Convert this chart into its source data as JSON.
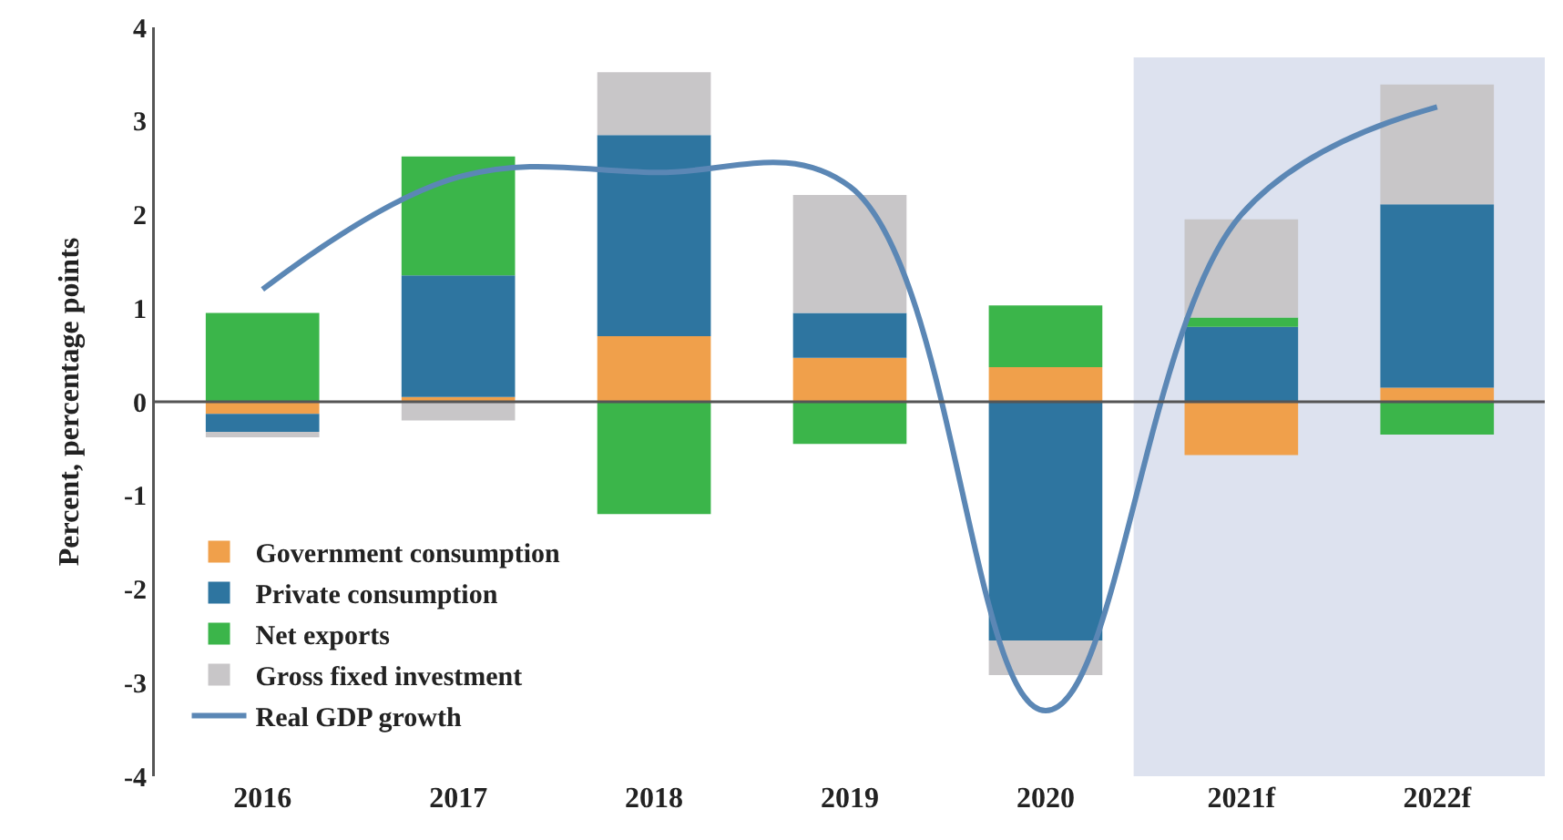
{
  "chart_data": {
    "type": "bar",
    "stacked": true,
    "ylabel": "Percent, percentage points",
    "categories": [
      "2016",
      "2017",
      "2018",
      "2019",
      "2020",
      "2021f",
      "2022f"
    ],
    "series": [
      {
        "name": "Government consumption",
        "color": "#f0a04b",
        "values": [
          -0.13,
          0.05,
          0.7,
          0.47,
          0.37,
          -0.57,
          0.15
        ]
      },
      {
        "name": "Private consumption",
        "color": "#2e75a0",
        "values": [
          -0.19,
          1.3,
          2.15,
          0.48,
          -2.55,
          0.8,
          1.96
        ]
      },
      {
        "name": "Net exports",
        "color": "#3bb54a",
        "values": [
          0.95,
          1.27,
          -1.2,
          -0.45,
          0.66,
          0.1,
          -0.35
        ]
      },
      {
        "name": "Gross fixed investment",
        "color": "#c8c6c8",
        "values": [
          -0.06,
          -0.2,
          0.67,
          1.26,
          -0.37,
          1.05,
          1.28
        ]
      },
      {
        "name": "Real GDP growth",
        "type": "line",
        "color": "#5b87b5",
        "values": [
          1.2,
          2.4,
          2.45,
          2.3,
          -3.3,
          2.0,
          3.15
        ]
      }
    ],
    "ylim": [
      -4,
      4
    ],
    "yticks": [
      -4,
      -3,
      -2,
      -1,
      0,
      1,
      2,
      3,
      4
    ],
    "ref_lines": [
      {
        "axis": "y",
        "value": 0,
        "color": "#555555"
      }
    ],
    "bands": [
      {
        "axis": "x",
        "from": "2021f",
        "to": "2022f",
        "color": "#dde2ef"
      }
    ],
    "grid": false,
    "legend": "bottom left",
    "marker": "none"
  }
}
